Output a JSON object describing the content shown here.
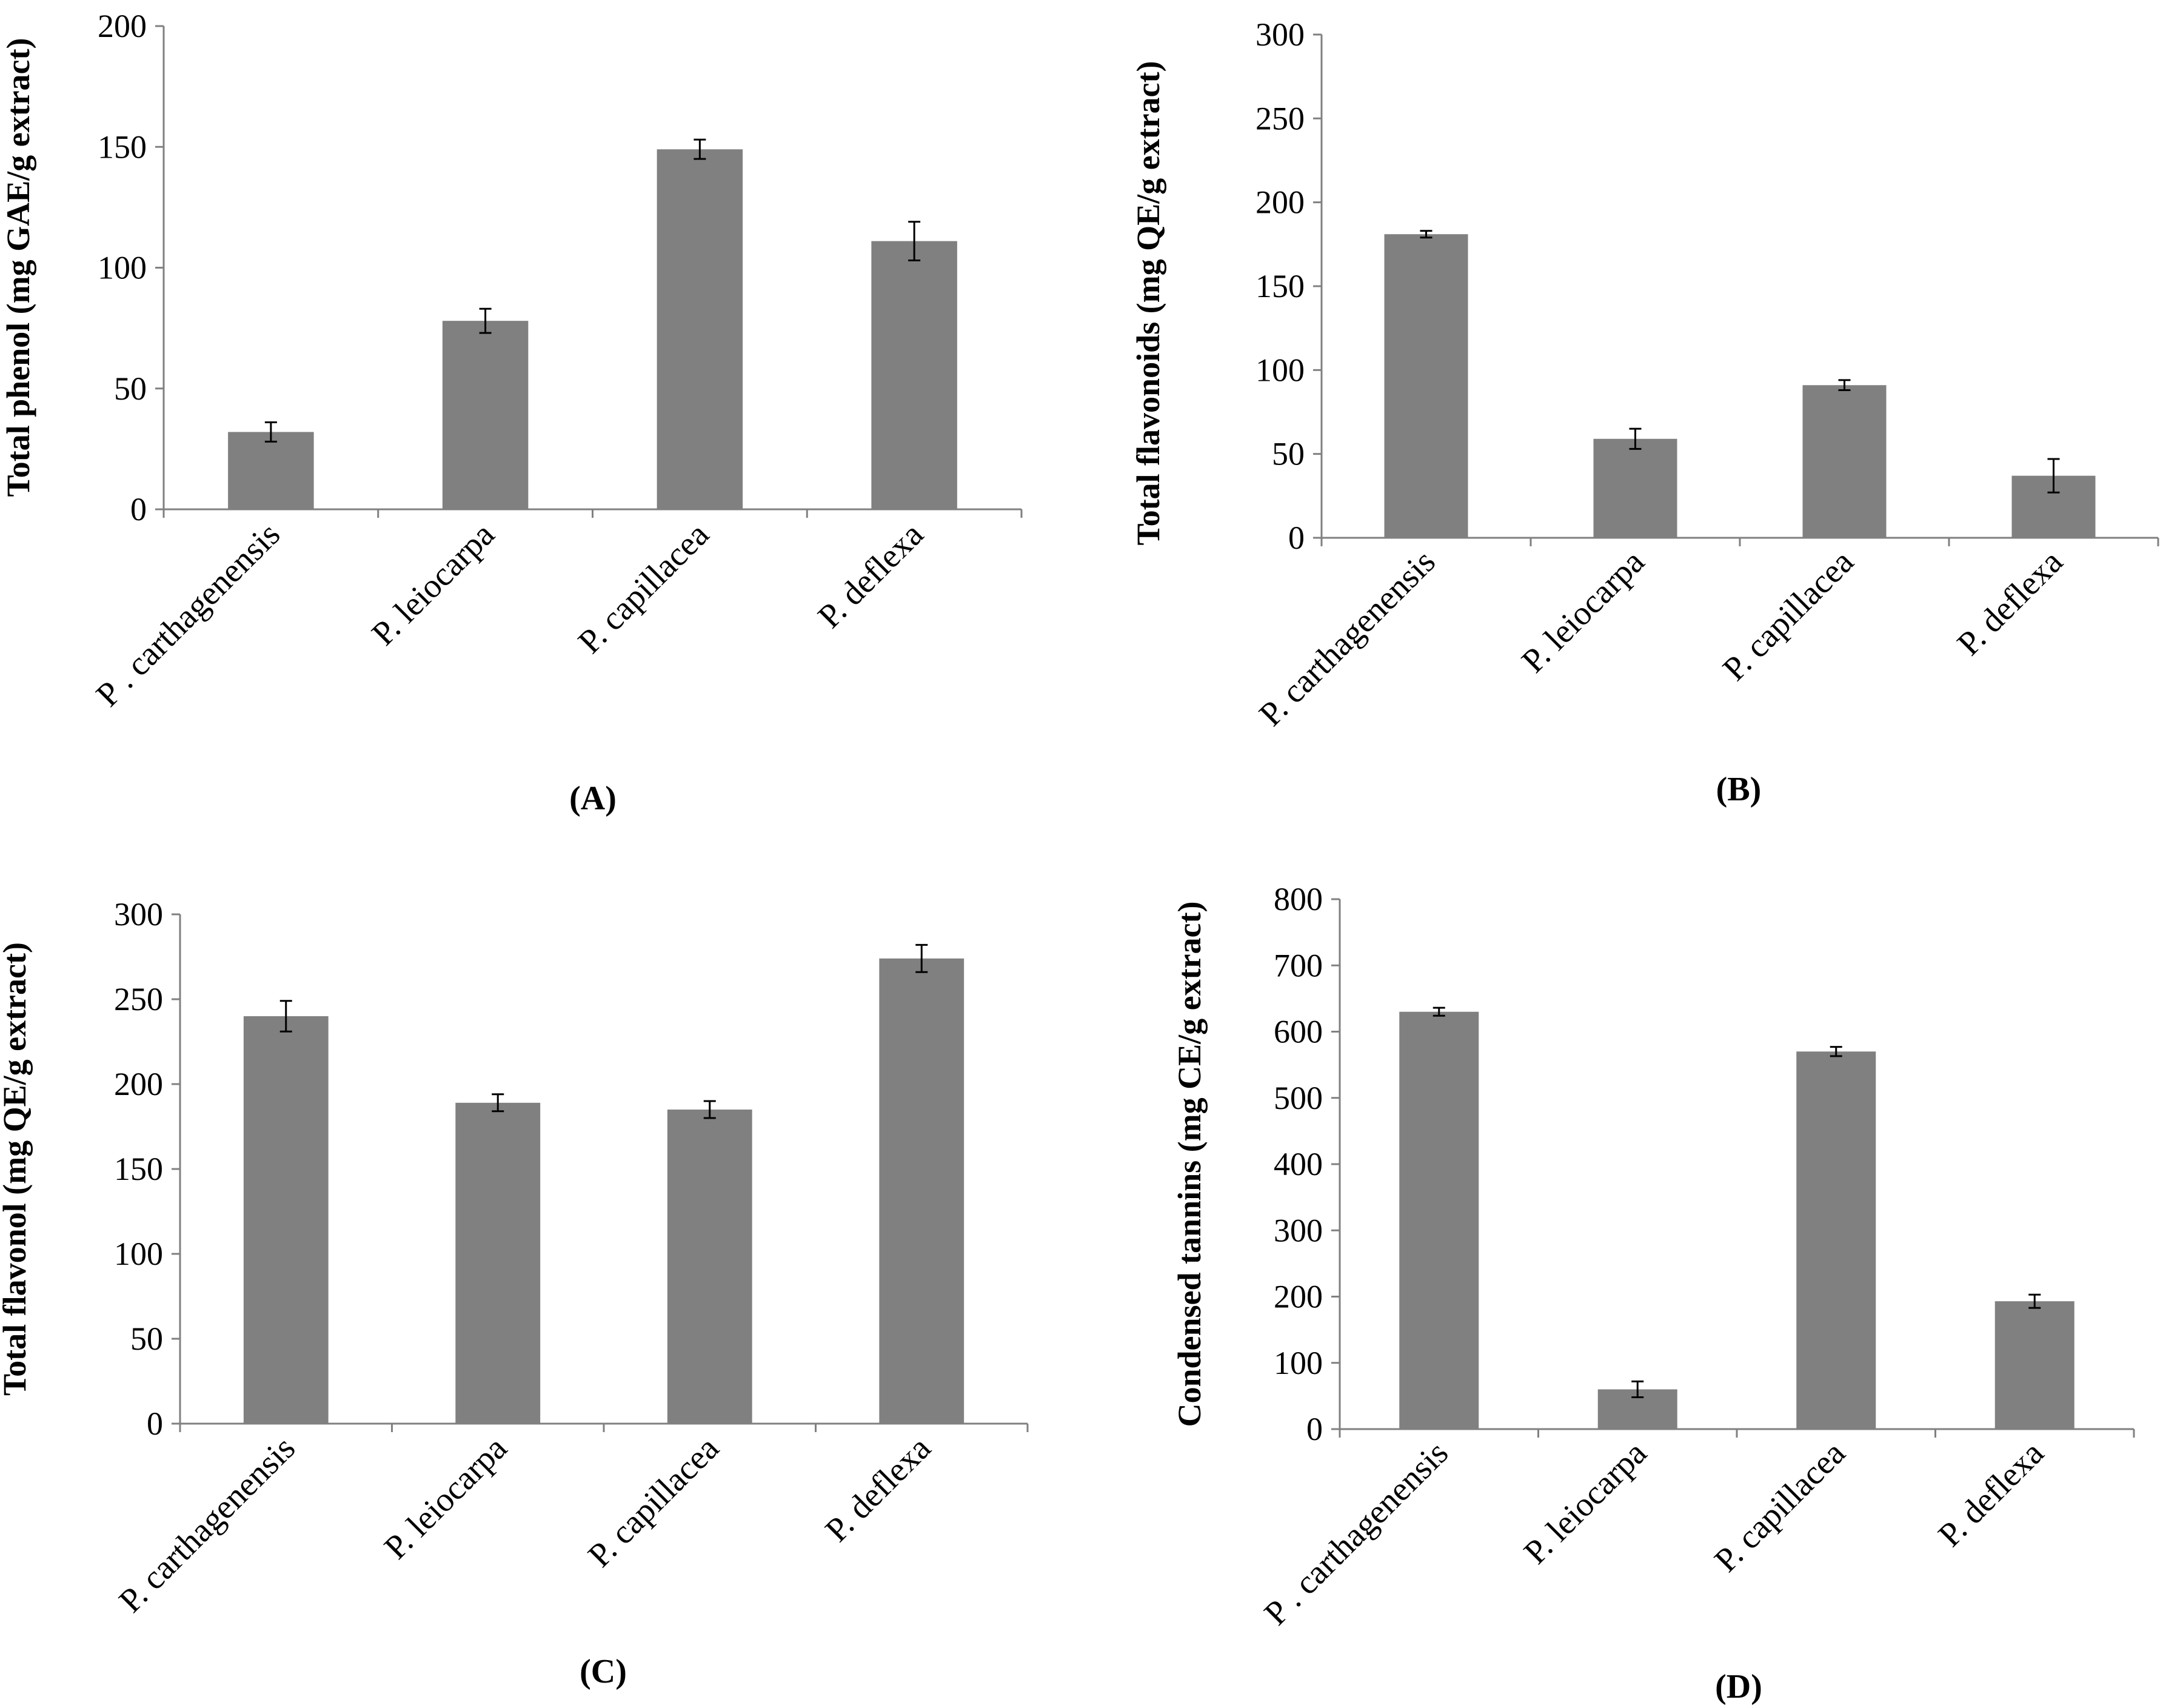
{
  "figure": {
    "bar_color": "#808080",
    "axis_color": "#808080"
  },
  "chart_data": [
    {
      "type": "bar",
      "panel_label": "(A)",
      "categories": [
        "P . carthagenensis",
        "P. leiocarpa",
        "P. capillacea",
        "P. deflexa"
      ],
      "values": [
        32,
        78,
        149,
        111
      ],
      "errors": [
        4,
        5,
        4,
        8
      ],
      "ylabel": "Total phenol (mg GAE/g extract)",
      "ylim": [
        0,
        200
      ],
      "yticks": [
        0,
        50,
        100,
        150,
        200
      ]
    },
    {
      "type": "bar",
      "panel_label": "(B)",
      "categories": [
        "P. carthagenensis",
        "P. leiocarpa",
        "P. capillacea",
        "P. deflexa"
      ],
      "values": [
        181,
        59,
        91,
        37
      ],
      "errors": [
        2,
        6,
        3,
        10
      ],
      "ylabel": "Total flavonoids (mg QE/g extract)",
      "ylim": [
        0,
        300
      ],
      "yticks": [
        0,
        50,
        100,
        150,
        200,
        250,
        300
      ]
    },
    {
      "type": "bar",
      "panel_label": "(C)",
      "categories": [
        "P. carthagenensis",
        "P. leiocarpa",
        "P. capillacea",
        "P. deflexa"
      ],
      "values": [
        240,
        189,
        185,
        274
      ],
      "errors": [
        9,
        5,
        5,
        8
      ],
      "ylabel": "Total flavonol (mg QE/g extract)",
      "ylim": [
        0,
        300
      ],
      "yticks": [
        0,
        50,
        100,
        150,
        200,
        250,
        300
      ]
    },
    {
      "type": "bar",
      "panel_label": "(D)",
      "categories": [
        "P . carthagenensis",
        "P. leiocarpa",
        "P. capillacea",
        "P. deflexa"
      ],
      "values": [
        630,
        60,
        570,
        193
      ],
      "errors": [
        6,
        12,
        7,
        10
      ],
      "ylabel": "Condensed tannins (mg CE/g extract)",
      "ylim": [
        0,
        800
      ],
      "yticks": [
        0,
        100,
        200,
        300,
        400,
        500,
        600,
        700,
        800
      ]
    }
  ]
}
